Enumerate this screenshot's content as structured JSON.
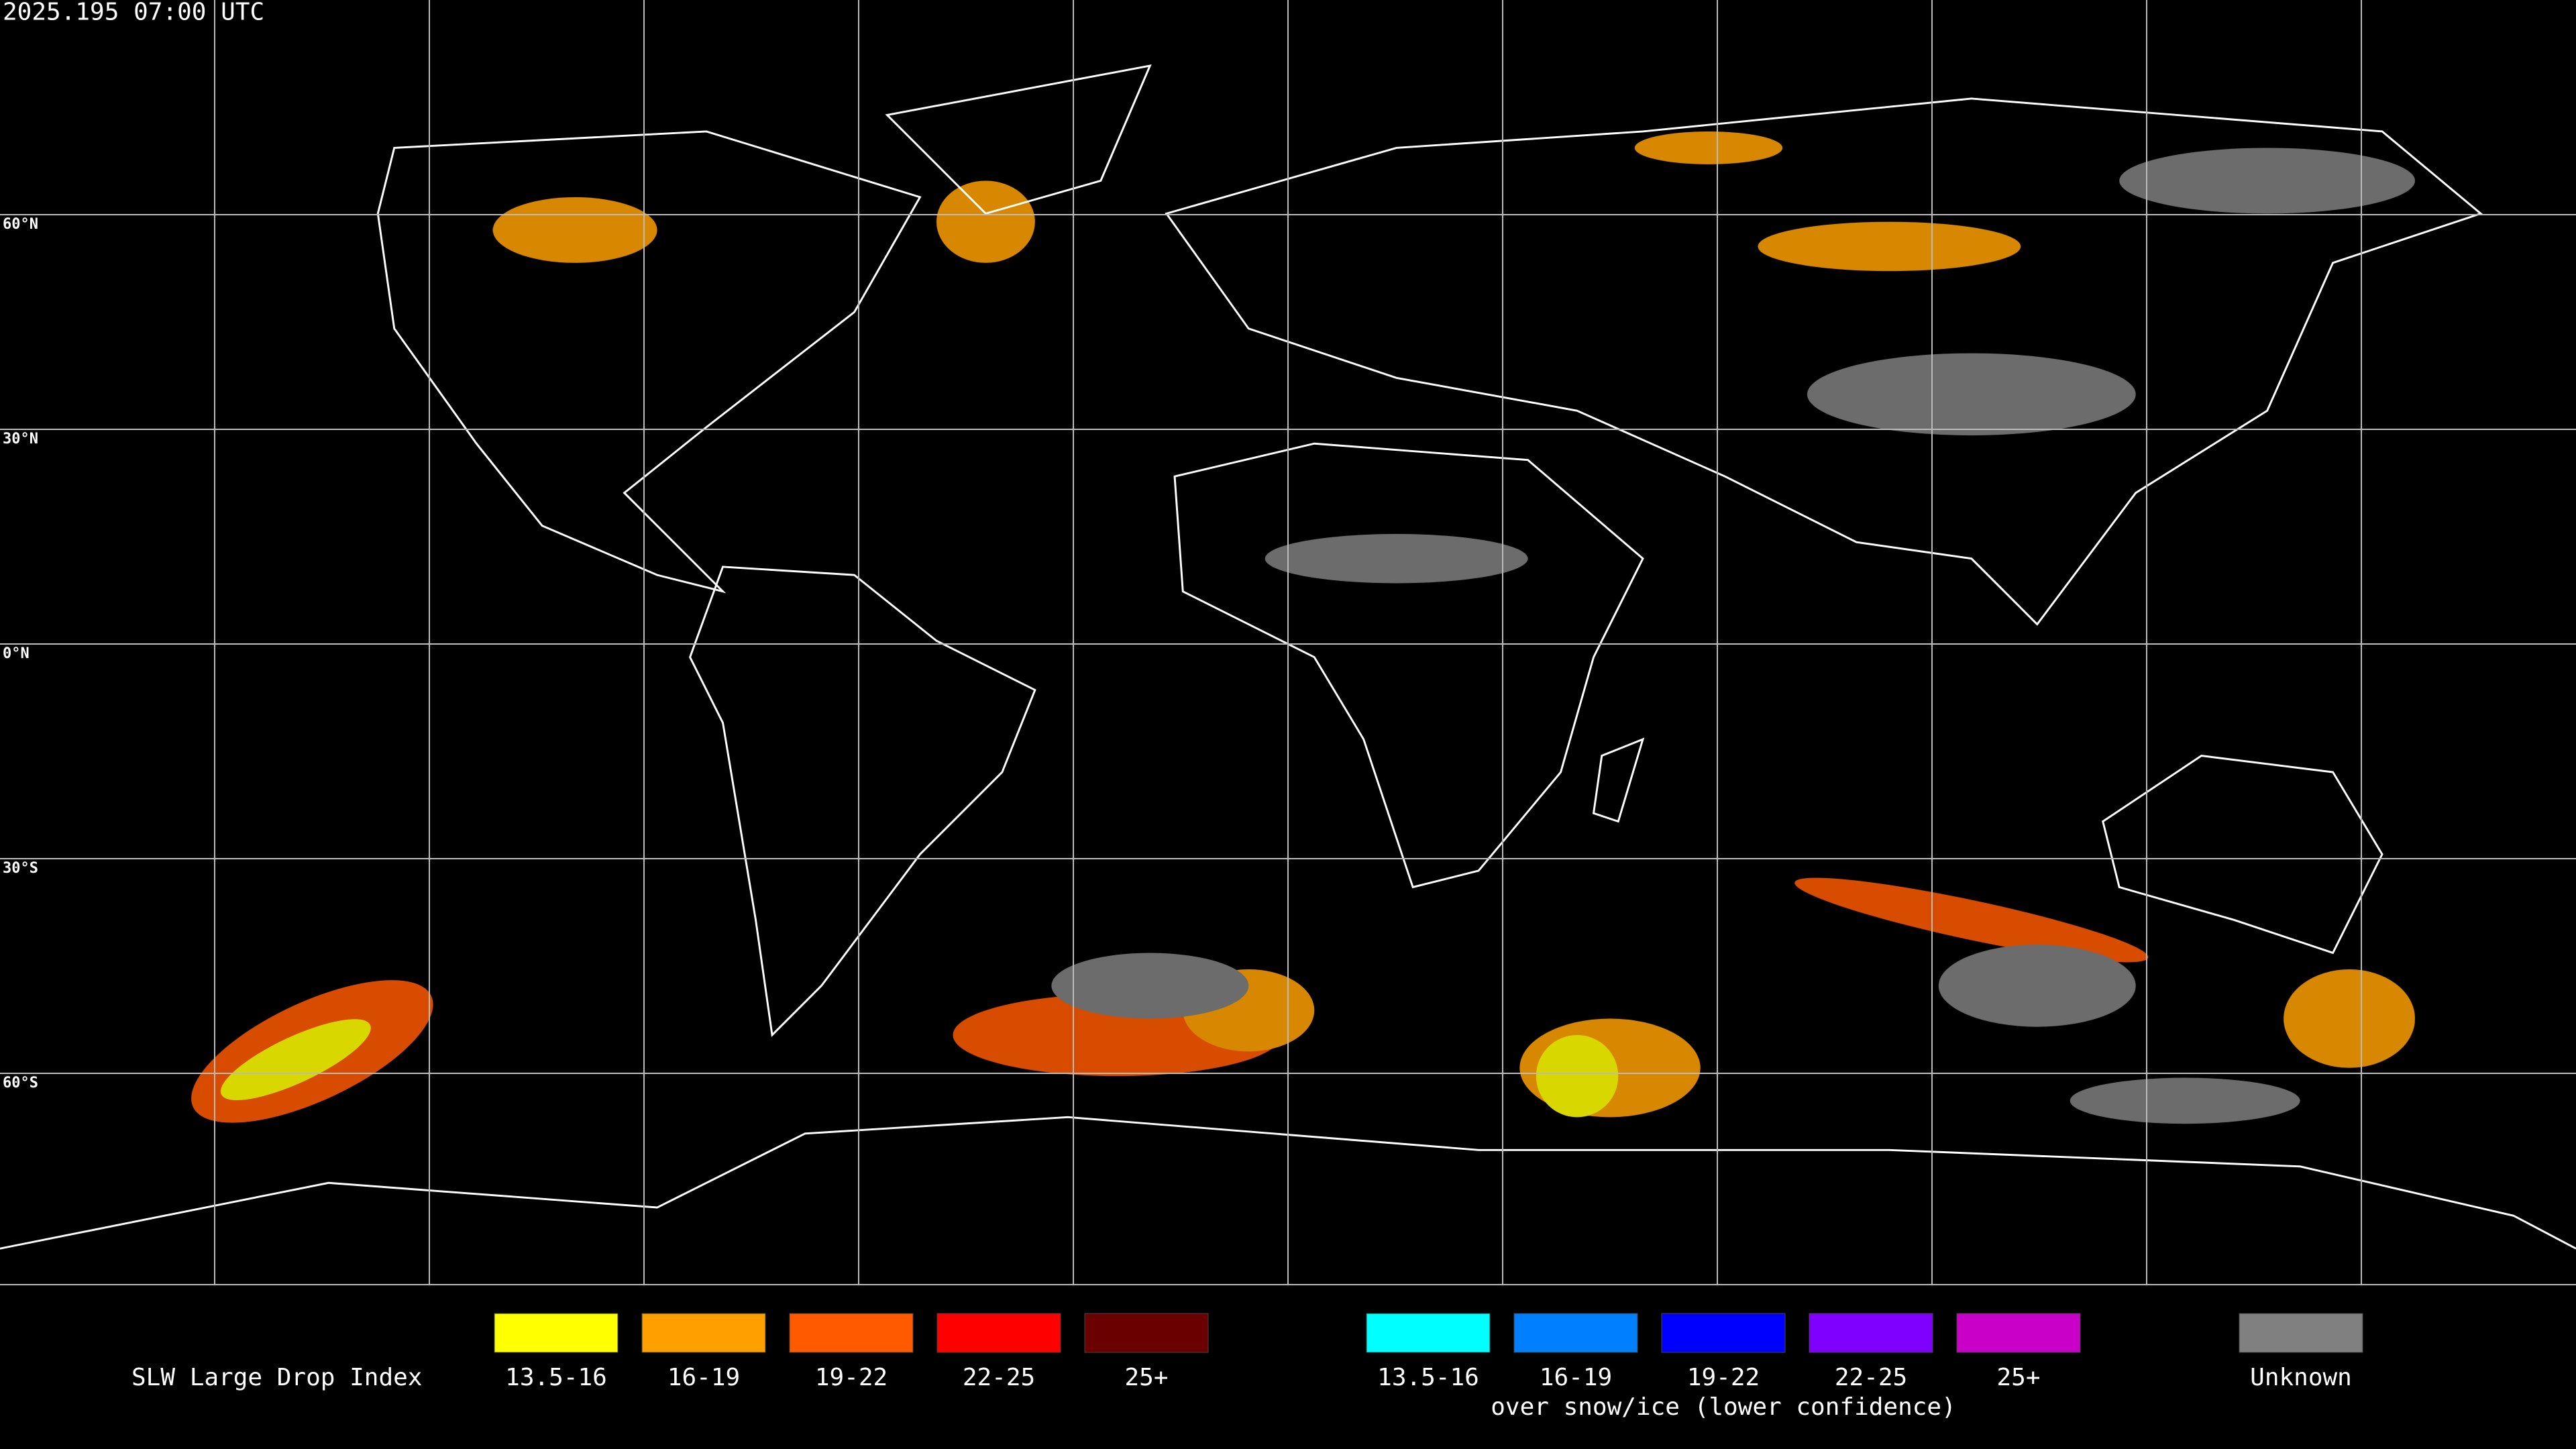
{
  "header": {
    "timestamp": "2025.195 07:00 UTC"
  },
  "map": {
    "latitude_labels": [
      "60°N",
      "30°N",
      "0°N",
      "30°S",
      "60°S"
    ]
  },
  "legend": {
    "title": "SLW Large Drop Index",
    "groups": [
      {
        "items": [
          {
            "label": "13.5-16",
            "color": "#ffff00"
          },
          {
            "label": "16-19",
            "color": "#ffa000"
          },
          {
            "label": "19-22",
            "color": "#ff5a00"
          },
          {
            "label": "22-25",
            "color": "#ff0000"
          },
          {
            "label": "25+",
            "color": "#6b0000"
          }
        ]
      },
      {
        "caption": "over snow/ice (lower confidence)",
        "items": [
          {
            "label": "13.5-16",
            "color": "#00ffff"
          },
          {
            "label": "16-19",
            "color": "#0080ff"
          },
          {
            "label": "19-22",
            "color": "#0000ff"
          },
          {
            "label": "22-25",
            "color": "#8000ff"
          },
          {
            "label": "25+",
            "color": "#c800c8"
          }
        ]
      }
    ],
    "unknown": {
      "label": "Unknown",
      "color": "#808080"
    }
  }
}
